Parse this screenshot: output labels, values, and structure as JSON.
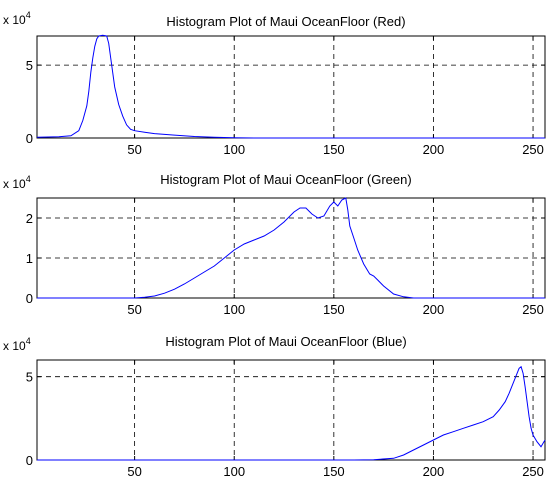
{
  "chart_data": [
    {
      "type": "line",
      "title": "Histogram Plot of Maui OceanFloor (Red)",
      "exponent_label": "x 10",
      "exponent_power": "4",
      "xlim": [
        1,
        256
      ],
      "ylim": [
        0,
        7
      ],
      "xticks": [
        "50",
        "100",
        "150",
        "200",
        "250"
      ],
      "yticks": [
        "0",
        "5"
      ],
      "grid": true,
      "line_color": "#0000ff",
      "x": [
        1,
        12,
        18,
        22,
        24,
        26,
        27,
        28,
        29,
        30,
        31,
        32,
        34,
        36,
        37,
        38,
        39,
        40,
        42,
        44,
        46,
        48,
        50,
        55,
        60,
        65,
        70,
        80,
        90,
        100,
        110,
        256
      ],
      "y": [
        0.05,
        0.08,
        0.15,
        0.5,
        1.2,
        2.2,
        3.2,
        4.5,
        5.5,
        6.3,
        6.8,
        7.0,
        7.05,
        7.0,
        6.5,
        5.5,
        4.5,
        3.5,
        2.3,
        1.5,
        0.9,
        0.6,
        0.5,
        0.4,
        0.3,
        0.25,
        0.2,
        0.1,
        0.05,
        0.02,
        0.0,
        0.0
      ]
    },
    {
      "type": "line",
      "title": "Histogram Plot of Maui OceanFloor (Green)",
      "exponent_label": "x 10",
      "exponent_power": "4",
      "xlim": [
        1,
        256
      ],
      "ylim": [
        0,
        2.5
      ],
      "xticks": [
        "50",
        "100",
        "150",
        "200",
        "250"
      ],
      "yticks": [
        "0",
        "1",
        "2"
      ],
      "grid": true,
      "line_color": "#0000ff",
      "x": [
        1,
        50,
        55,
        60,
        65,
        70,
        75,
        80,
        85,
        90,
        95,
        100,
        105,
        110,
        115,
        120,
        125,
        130,
        133,
        136,
        139,
        142,
        145,
        148,
        150,
        152,
        154,
        156,
        157,
        158,
        160,
        162,
        165,
        168,
        170,
        172,
        175,
        180,
        185,
        190,
        256
      ],
      "y": [
        0.0,
        0.0,
        0.02,
        0.05,
        0.12,
        0.22,
        0.35,
        0.5,
        0.65,
        0.8,
        1.0,
        1.2,
        1.35,
        1.45,
        1.55,
        1.7,
        1.9,
        2.15,
        2.25,
        2.25,
        2.1,
        2.0,
        2.05,
        2.3,
        2.4,
        2.3,
        2.45,
        2.5,
        2.2,
        1.8,
        1.5,
        1.2,
        0.85,
        0.6,
        0.55,
        0.45,
        0.3,
        0.1,
        0.03,
        0.0,
        0.0
      ]
    },
    {
      "type": "line",
      "title": "Histogram Plot of Maui OceanFloor (Blue)",
      "exponent_label": "x 10",
      "exponent_power": "4",
      "xlim": [
        1,
        256
      ],
      "ylim": [
        0,
        6
      ],
      "xticks": [
        "50",
        "100",
        "150",
        "200",
        "250"
      ],
      "yticks": [
        "0",
        "5"
      ],
      "grid": true,
      "line_color": "#0000ff",
      "x": [
        1,
        160,
        170,
        180,
        185,
        190,
        195,
        200,
        205,
        210,
        215,
        220,
        225,
        230,
        233,
        236,
        238,
        240,
        242,
        243,
        244,
        245,
        246,
        247,
        248,
        249,
        250,
        252,
        254,
        256
      ],
      "y": [
        0.0,
        0.0,
        0.02,
        0.1,
        0.3,
        0.6,
        0.9,
        1.2,
        1.5,
        1.7,
        1.9,
        2.1,
        2.3,
        2.6,
        3.0,
        3.5,
        4.0,
        4.6,
        5.2,
        5.5,
        5.6,
        5.2,
        4.4,
        3.5,
        2.6,
        1.9,
        1.5,
        1.1,
        0.8,
        1.2
      ]
    }
  ]
}
